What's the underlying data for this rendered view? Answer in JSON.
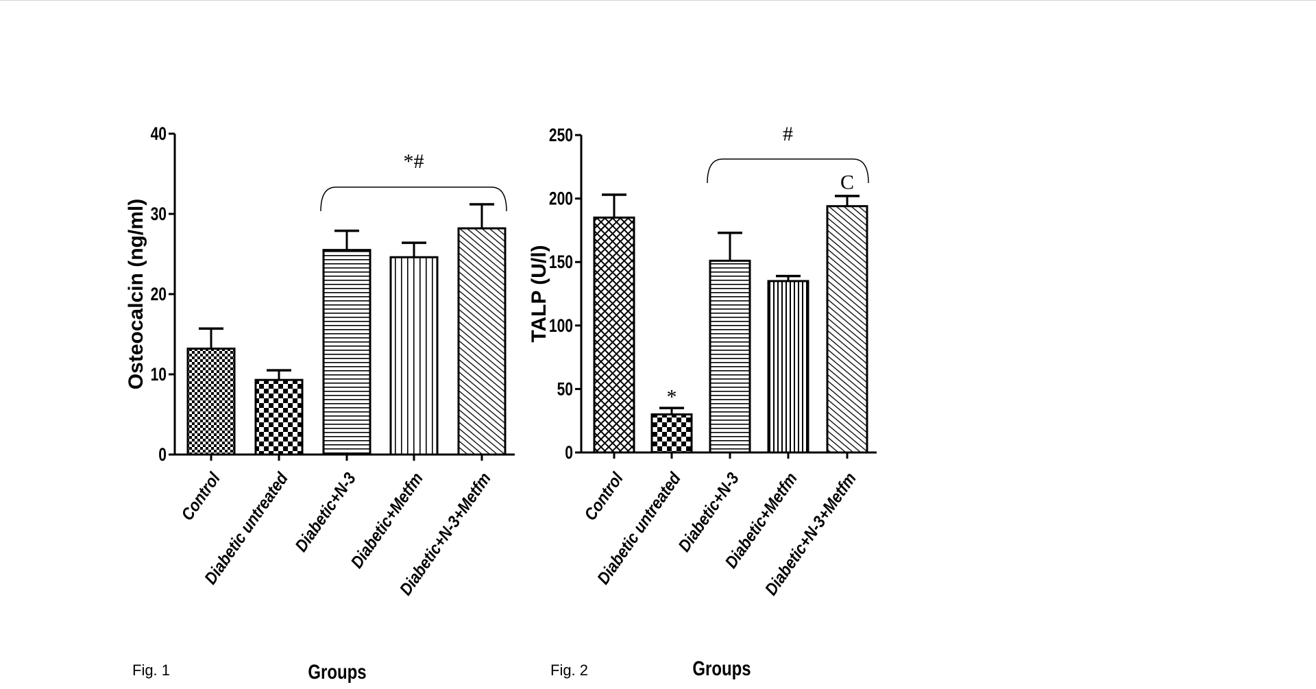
{
  "figures": [
    {
      "caption": "Fig. 1"
    },
    {
      "caption": "Fig. 2"
    }
  ],
  "chart_data": [
    {
      "type": "bar",
      "title": "",
      "xlabel": "Groups",
      "ylabel": "Osteocalcin (ng/ml)",
      "ylim": [
        0,
        40
      ],
      "yticks": [
        0,
        10,
        20,
        30,
        40
      ],
      "categories": [
        "Control",
        "Diabetic untreated",
        "Diabetic+N-3",
        "Diabetic+Metfm",
        "Diabetic+N-3+Metfm"
      ],
      "values": [
        13.2,
        9.3,
        25.5,
        24.6,
        28.2
      ],
      "errors": [
        2.5,
        1.2,
        2.4,
        1.8,
        3.0
      ],
      "patterns": [
        "checker-fine",
        "checker-coarse",
        "horizontal",
        "vertical",
        "diagonal"
      ],
      "annotations": [
        {
          "text": "*#",
          "bracket_from": 2,
          "bracket_to": 4,
          "level": 33
        }
      ],
      "grid": false,
      "legend": "none"
    },
    {
      "type": "bar",
      "title": "",
      "xlabel": "Groups",
      "ylabel": "TALP (U/l)",
      "ylim": [
        0,
        250
      ],
      "yticks": [
        0,
        50,
        100,
        150,
        200,
        250
      ],
      "categories": [
        "Control",
        "Diabetic untreated",
        "Diabetic+N-3",
        "Diabetic+Metfm",
        "Diabetic+N-3+Metfm"
      ],
      "values": [
        185,
        30,
        151,
        135,
        194
      ],
      "errors": [
        18,
        5,
        22,
        4,
        8
      ],
      "patterns": [
        "crosshatch",
        "checker-coarse",
        "horizontal",
        "vertical-dense",
        "diagonal"
      ],
      "annotations": [
        {
          "text": "#",
          "bracket_from": 2,
          "bracket_to": 4,
          "level": 232
        },
        {
          "text": "*",
          "bar": 1,
          "level": 45
        },
        {
          "text": "C",
          "bar": 4,
          "level": 214
        }
      ],
      "grid": false,
      "legend": "none"
    }
  ]
}
